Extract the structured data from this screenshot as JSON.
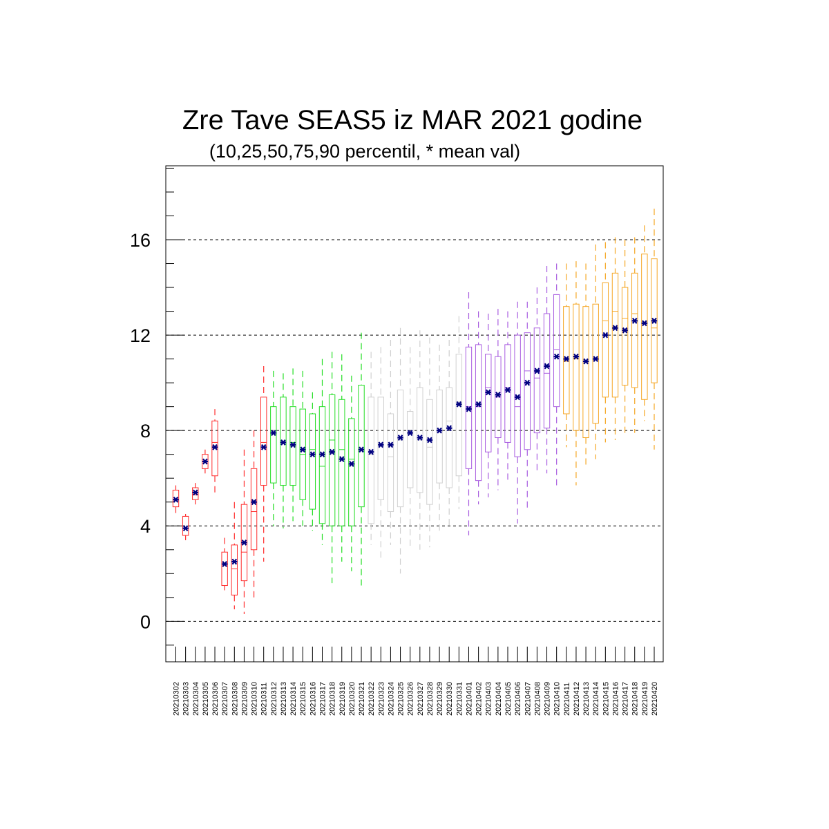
{
  "chart_data": {
    "type": "boxplot",
    "title": "Zre Tave SEAS5 iz MAR 2021 godine",
    "subtitle": "(10,25,50,75,90 percentil, * mean val)",
    "xlabel": "",
    "ylabel": "",
    "ylim": [
      -1.7,
      19.1
    ],
    "yticks": [
      0,
      4,
      8,
      12,
      16
    ],
    "grid": "horizontal dashed at major ticks",
    "mean_marker": "*",
    "mean_color": "#000080",
    "group_colors": {
      "red": "#ff2b2b",
      "green": "#22dd22",
      "gray": "#d0d0d0",
      "purple": "#a85ce0",
      "orange": "#f5a623"
    },
    "boxes": [
      {
        "date": "20210302",
        "color": "red",
        "p10": 4.5,
        "p25": 4.8,
        "p50": 5.1,
        "p75": 5.5,
        "p90": 5.7,
        "mean": 5.1
      },
      {
        "date": "20210303",
        "color": "red",
        "p10": 3.4,
        "p25": 3.6,
        "p50": 3.9,
        "p75": 4.4,
        "p90": 4.5,
        "mean": 3.9
      },
      {
        "date": "20210304",
        "color": "red",
        "p10": 4.9,
        "p25": 5.1,
        "p50": 5.3,
        "p75": 5.6,
        "p90": 5.8,
        "mean": 5.4
      },
      {
        "date": "20210305",
        "color": "red",
        "p10": 6.2,
        "p25": 6.4,
        "p50": 6.7,
        "p75": 7.0,
        "p90": 7.2,
        "mean": 6.7
      },
      {
        "date": "20210306",
        "color": "red",
        "p10": 5.3,
        "p25": 6.1,
        "p50": 7.5,
        "p75": 8.4,
        "p90": 8.9,
        "mean": 7.3
      },
      {
        "date": "20210307",
        "color": "red",
        "p10": 1.3,
        "p25": 1.5,
        "p50": 2.4,
        "p75": 2.9,
        "p90": 3.5,
        "mean": 2.4
      },
      {
        "date": "20210308",
        "color": "red",
        "p10": 0.5,
        "p25": 1.1,
        "p50": 2.2,
        "p75": 3.2,
        "p90": 5.0,
        "mean": 2.5
      },
      {
        "date": "20210309",
        "color": "red",
        "p10": 0.3,
        "p25": 1.7,
        "p50": 2.9,
        "p75": 4.9,
        "p90": 7.2,
        "mean": 3.3
      },
      {
        "date": "20210310",
        "color": "red",
        "p10": 1.0,
        "p25": 3.0,
        "p50": 4.6,
        "p75": 6.4,
        "p90": 8.0,
        "mean": 5.0
      },
      {
        "date": "20210311",
        "color": "red",
        "p10": 2.5,
        "p25": 5.7,
        "p50": 7.5,
        "p75": 9.4,
        "p90": 10.7,
        "mean": 7.3
      },
      {
        "date": "20210312",
        "color": "green",
        "p10": 4.0,
        "p25": 5.8,
        "p50": 7.9,
        "p75": 9.0,
        "p90": 10.5,
        "mean": 7.9
      },
      {
        "date": "20210313",
        "color": "green",
        "p10": 3.9,
        "p25": 5.7,
        "p50": 7.5,
        "p75": 9.4,
        "p90": 10.4,
        "mean": 7.5
      },
      {
        "date": "20210314",
        "color": "green",
        "p10": 4.2,
        "p25": 5.7,
        "p50": 7.5,
        "p75": 9.0,
        "p90": 10.6,
        "mean": 7.4
      },
      {
        "date": "20210315",
        "color": "green",
        "p10": 4.0,
        "p25": 5.1,
        "p50": 7.0,
        "p75": 8.9,
        "p90": 10.5,
        "mean": 7.2
      },
      {
        "date": "20210316",
        "color": "green",
        "p10": 3.8,
        "p25": 4.7,
        "p50": 7.2,
        "p75": 8.7,
        "p90": 9.6,
        "mean": 7.0
      },
      {
        "date": "20210317",
        "color": "green",
        "p10": 3.2,
        "p25": 4.1,
        "p50": 6.5,
        "p75": 9.0,
        "p90": 11.0,
        "mean": 7.0
      },
      {
        "date": "20210318",
        "color": "green",
        "p10": 1.6,
        "p25": 4.0,
        "p50": 7.6,
        "p75": 9.5,
        "p90": 11.3,
        "mean": 7.1
      },
      {
        "date": "20210319",
        "color": "green",
        "p10": 2.5,
        "p25": 4.0,
        "p50": 7.2,
        "p75": 9.3,
        "p90": 11.2,
        "mean": 6.8
      },
      {
        "date": "20210320",
        "color": "green",
        "p10": 2.1,
        "p25": 4.0,
        "p50": 6.8,
        "p75": 8.5,
        "p90": 10.3,
        "mean": 6.6
      },
      {
        "date": "20210321",
        "color": "green",
        "p10": 1.5,
        "p25": 4.8,
        "p50": 7.2,
        "p75": 9.9,
        "p90": 12.1,
        "mean": 7.2
      },
      {
        "date": "20210322",
        "color": "gray",
        "p10": 3.2,
        "p25": 4.1,
        "p50": 7.0,
        "p75": 9.4,
        "p90": 11.3,
        "mean": 7.1
      },
      {
        "date": "20210323",
        "color": "gray",
        "p10": 2.5,
        "p25": 5.1,
        "p50": 7.4,
        "p75": 9.4,
        "p90": 11.5,
        "mean": 7.4
      },
      {
        "date": "20210324",
        "color": "gray",
        "p10": 3.2,
        "p25": 4.6,
        "p50": 6.9,
        "p75": 8.7,
        "p90": 11.8,
        "mean": 7.4
      },
      {
        "date": "20210325",
        "color": "gray",
        "p10": 2.0,
        "p25": 4.8,
        "p50": 7.6,
        "p75": 9.7,
        "p90": 12.3,
        "mean": 7.7
      },
      {
        "date": "20210326",
        "color": "gray",
        "p10": 3.1,
        "p25": 5.6,
        "p50": 7.9,
        "p75": 8.8,
        "p90": 11.5,
        "mean": 7.9
      },
      {
        "date": "20210327",
        "color": "gray",
        "p10": 3.0,
        "p25": 5.4,
        "p50": 7.6,
        "p75": 9.8,
        "p90": 12.2,
        "mean": 7.7
      },
      {
        "date": "20210328",
        "color": "gray",
        "p10": 3.1,
        "p25": 4.9,
        "p50": 7.3,
        "p75": 9.3,
        "p90": 11.9,
        "mean": 7.6
      },
      {
        "date": "20210329",
        "color": "gray",
        "p10": 3.7,
        "p25": 5.8,
        "p50": 8.0,
        "p75": 9.7,
        "p90": 11.6,
        "mean": 8.0
      },
      {
        "date": "20210330",
        "color": "gray",
        "p10": 3.9,
        "p25": 5.6,
        "p50": 8.4,
        "p75": 9.8,
        "p90": 11.8,
        "mean": 8.1
      },
      {
        "date": "20210331",
        "color": "gray",
        "p10": 4.7,
        "p25": 6.1,
        "p50": 9.2,
        "p75": 11.2,
        "p90": 12.8,
        "mean": 9.1
      },
      {
        "date": "20210401",
        "color": "purple",
        "p10": 3.6,
        "p25": 6.4,
        "p50": 9.0,
        "p75": 11.5,
        "p90": 13.8,
        "mean": 8.9
      },
      {
        "date": "20210402",
        "color": "purple",
        "p10": 4.9,
        "p25": 5.9,
        "p50": 9.0,
        "p75": 11.6,
        "p90": 13.0,
        "mean": 9.1
      },
      {
        "date": "20210403",
        "color": "purple",
        "p10": 5.2,
        "p25": 7.1,
        "p50": 9.8,
        "p75": 11.2,
        "p90": 12.9,
        "mean": 9.6
      },
      {
        "date": "20210404",
        "color": "purple",
        "p10": 5.5,
        "p25": 7.7,
        "p50": 9.4,
        "p75": 11.1,
        "p90": 13.1,
        "mean": 9.5
      },
      {
        "date": "20210405",
        "color": "purple",
        "p10": 5.9,
        "p25": 7.5,
        "p50": 9.8,
        "p75": 11.6,
        "p90": 13.0,
        "mean": 9.7
      },
      {
        "date": "20210406",
        "color": "purple",
        "p10": 4.1,
        "p25": 6.9,
        "p50": 9.0,
        "p75": 12.0,
        "p90": 13.4,
        "mean": 9.4
      },
      {
        "date": "20210407",
        "color": "purple",
        "p10": 4.6,
        "p25": 7.2,
        "p50": 10.5,
        "p75": 12.1,
        "p90": 13.4,
        "mean": 10.0
      },
      {
        "date": "20210408",
        "color": "purple",
        "p10": 6.3,
        "p25": 7.9,
        "p50": 10.2,
        "p75": 12.3,
        "p90": 14.0,
        "mean": 10.5
      },
      {
        "date": "20210409",
        "color": "purple",
        "p10": 6.2,
        "p25": 8.1,
        "p50": 10.4,
        "p75": 12.9,
        "p90": 14.9,
        "mean": 10.7
      },
      {
        "date": "20210410",
        "color": "purple",
        "p10": 5.7,
        "p25": 9.0,
        "p50": 11.4,
        "p75": 13.7,
        "p90": 15.0,
        "mean": 11.1
      },
      {
        "date": "20210411",
        "color": "orange",
        "p10": 7.3,
        "p25": 8.7,
        "p50": 10.9,
        "p75": 13.2,
        "p90": 15.0,
        "mean": 11.0
      },
      {
        "date": "20210412",
        "color": "orange",
        "p10": 5.7,
        "p25": 8.0,
        "p50": 11.0,
        "p75": 13.3,
        "p90": 15.1,
        "mean": 11.1
      },
      {
        "date": "20210413",
        "color": "orange",
        "p10": 6.4,
        "p25": 7.7,
        "p50": 10.9,
        "p75": 13.2,
        "p90": 15.0,
        "mean": 10.9
      },
      {
        "date": "20210414",
        "color": "orange",
        "p10": 6.8,
        "p25": 8.3,
        "p50": 11.0,
        "p75": 13.3,
        "p90": 15.8,
        "mean": 11.0
      },
      {
        "date": "20210415",
        "color": "orange",
        "p10": 7.5,
        "p25": 9.4,
        "p50": 12.6,
        "p75": 14.2,
        "p90": 15.9,
        "mean": 12.0
      },
      {
        "date": "20210416",
        "color": "orange",
        "p10": 7.6,
        "p25": 9.4,
        "p50": 13.0,
        "p75": 14.6,
        "p90": 16.1,
        "mean": 12.3
      },
      {
        "date": "20210417",
        "color": "orange",
        "p10": 7.8,
        "p25": 9.9,
        "p50": 12.7,
        "p75": 14.0,
        "p90": 16.0,
        "mean": 12.2
      },
      {
        "date": "20210418",
        "color": "orange",
        "p10": 7.9,
        "p25": 9.8,
        "p50": 12.9,
        "p75": 14.6,
        "p90": 16.1,
        "mean": 12.6
      },
      {
        "date": "20210419",
        "color": "orange",
        "p10": 8.4,
        "p25": 9.3,
        "p50": 12.5,
        "p75": 15.4,
        "p90": 16.6,
        "mean": 12.5
      },
      {
        "date": "20210420",
        "color": "orange",
        "p10": 7.2,
        "p25": 10.0,
        "p50": 12.3,
        "p75": 15.2,
        "p90": 17.3,
        "mean": 12.6
      }
    ]
  }
}
